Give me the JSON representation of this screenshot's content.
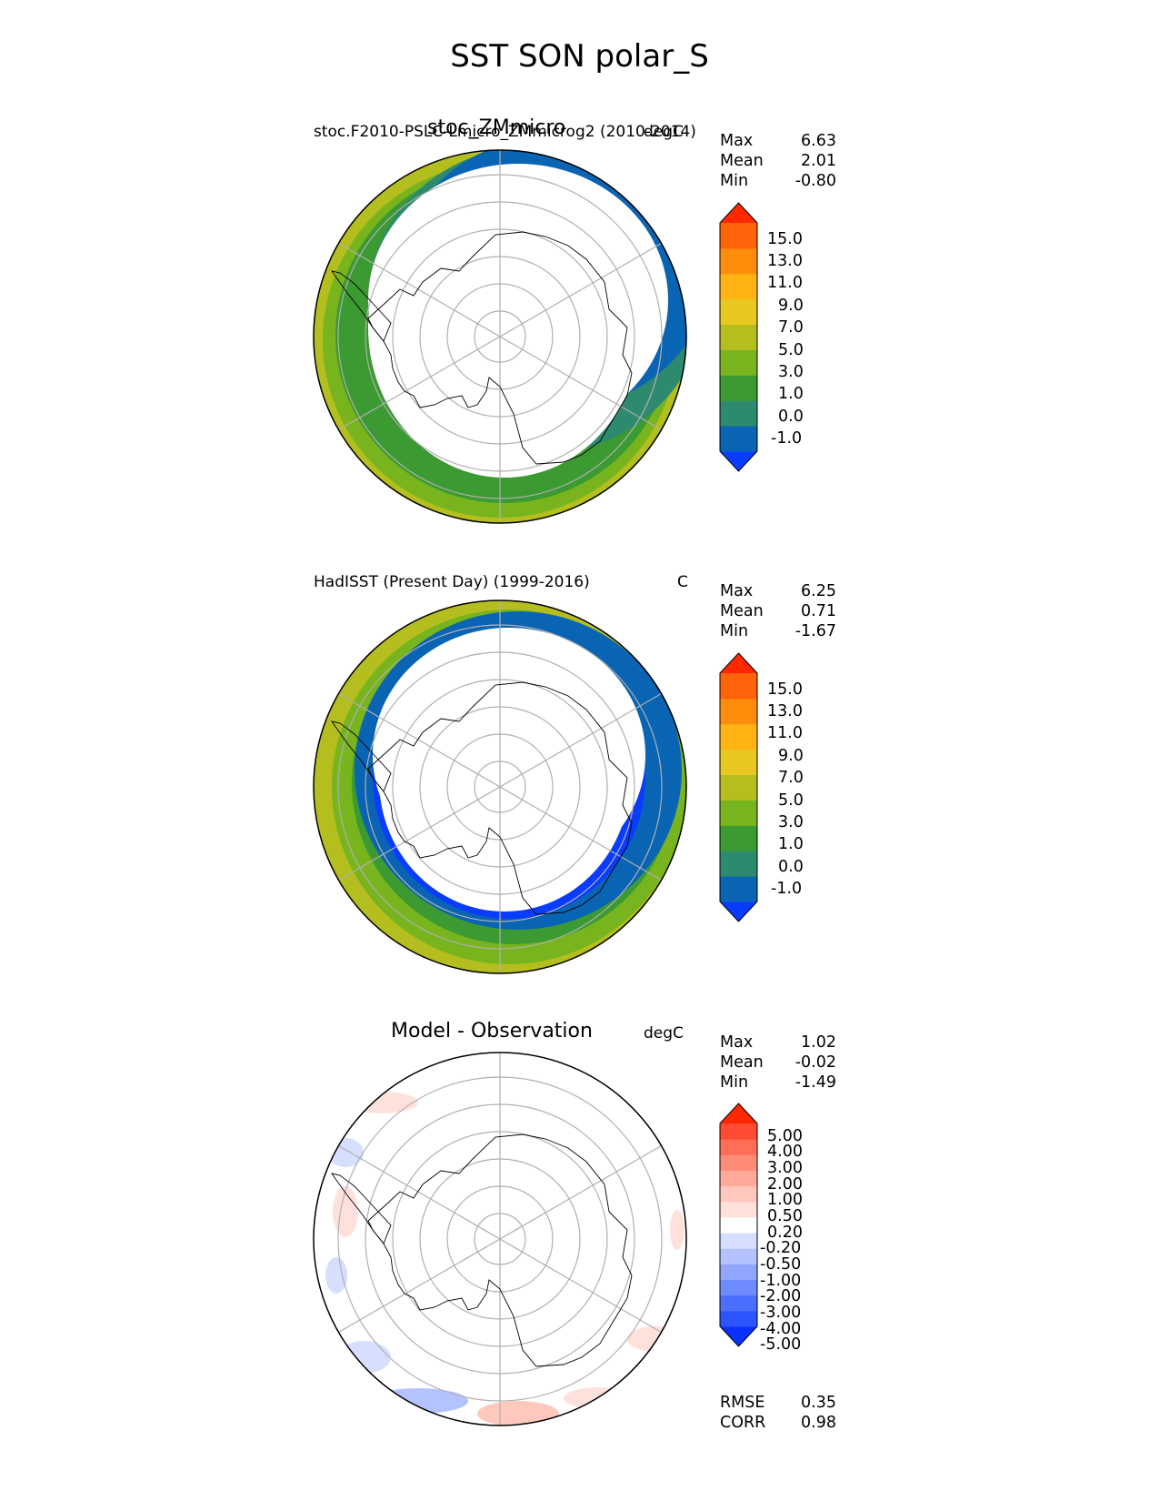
{
  "page": {
    "title": "SST SON polar_S"
  },
  "chart_data": [
    {
      "type": "heatmap",
      "projection": "south-polar-stereographic",
      "left_title": "stoc.F2010-PSLC-Lmicro_ZMmicrog2 (2010-2014)",
      "center_title": "stoc_ZMmicro",
      "right_title": "degC",
      "stats": [
        {
          "label": "Max",
          "value": "6.63"
        },
        {
          "label": "Mean",
          "value": "2.01"
        },
        {
          "label": "Min",
          "value": "-0.80"
        }
      ],
      "colorbar": {
        "levels": [
          "-1.0",
          "0.0",
          "1.0",
          "3.0",
          "5.0",
          "7.0",
          "9.0",
          "11.0",
          "13.0",
          "15.0"
        ],
        "colors": [
          "#0a3cff",
          "#0a64b4",
          "#2e8a6e",
          "#3c9a32",
          "#78b41e",
          "#b4be1e",
          "#e8c820",
          "#ffb414",
          "#ff8c0a",
          "#ff640a",
          "#ff2800"
        ],
        "extend": "both"
      }
    },
    {
      "type": "heatmap",
      "projection": "south-polar-stereographic",
      "left_title": "HadISST (Present Day) (1999-2016)",
      "center_title": "",
      "right_title": "C",
      "stats": [
        {
          "label": "Max",
          "value": "6.25"
        },
        {
          "label": "Mean",
          "value": "0.71"
        },
        {
          "label": "Min",
          "value": "-1.67"
        }
      ],
      "colorbar": {
        "levels": [
          "-1.0",
          "0.0",
          "1.0",
          "3.0",
          "5.0",
          "7.0",
          "9.0",
          "11.0",
          "13.0",
          "15.0"
        ],
        "colors": [
          "#0a3cff",
          "#0a64b4",
          "#2e8a6e",
          "#3c9a32",
          "#78b41e",
          "#b4be1e",
          "#e8c820",
          "#ffb414",
          "#ff8c0a",
          "#ff640a",
          "#ff2800"
        ],
        "extend": "both"
      }
    },
    {
      "type": "heatmap",
      "projection": "south-polar-stereographic",
      "left_title": "",
      "center_title": "Model - Observation",
      "right_title": "degC",
      "stats": [
        {
          "label": "Max",
          "value": "1.02"
        },
        {
          "label": "Mean",
          "value": "-0.02"
        },
        {
          "label": "Min",
          "value": "-1.49"
        }
      ],
      "colorbar": {
        "levels": [
          "-5.00",
          "-4.00",
          "-3.00",
          "-2.00",
          "-1.00",
          "-0.50",
          "-0.20",
          "0.20",
          "0.50",
          "1.00",
          "2.00",
          "3.00",
          "4.00",
          "5.00"
        ],
        "colors": [
          "#0a32ff",
          "#2d55ff",
          "#4b6eff",
          "#6e8cff",
          "#91a5ff",
          "#b4c3ff",
          "#d7dfff",
          "#ffffff",
          "#ffe1dc",
          "#ffc8be",
          "#ffaa9b",
          "#ff8c78",
          "#ff6e55",
          "#ff4b32",
          "#ff2800"
        ],
        "extend": "both"
      },
      "metrics": [
        {
          "label": "RMSE",
          "value": "0.35"
        },
        {
          "label": "CORR",
          "value": "0.98"
        }
      ]
    }
  ]
}
